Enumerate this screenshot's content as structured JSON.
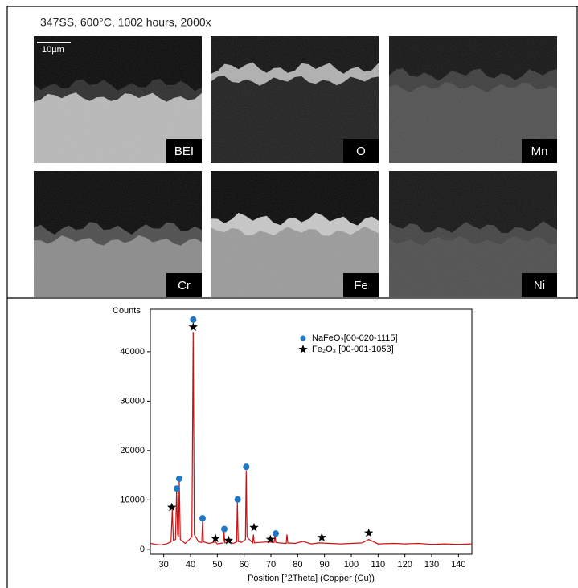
{
  "caption": "347SS, 600°C, 1002 hours, 2000x",
  "scale_bar": "10µm",
  "panels": [
    "BEI",
    "O",
    "Mn",
    "Cr",
    "Fe",
    "Ni"
  ],
  "chart_data": {
    "type": "line",
    "y_label": "Counts",
    "x_label": "Position [°2Theta] (Copper (Cu))",
    "xlim": [
      25,
      145
    ],
    "ylim": [
      -1000,
      48600
    ],
    "xticks": [
      30,
      40,
      50,
      60,
      70,
      80,
      90,
      100,
      110,
      120,
      130,
      140
    ],
    "yticks": [
      0,
      10000,
      20000,
      30000,
      40000
    ],
    "series": [
      {
        "color": "#d01010",
        "x": [
          25,
          27,
          29,
          31,
          32.7,
          33.2,
          33.6,
          34.4,
          34.8,
          35.2,
          35.5,
          35.8,
          36.2,
          38,
          40.5,
          41,
          41.4,
          43,
          44.2,
          44.5,
          44.8,
          47,
          49.3,
          50,
          52.2,
          52.5,
          52.8,
          54.2,
          56,
          57.2,
          57.5,
          57.8,
          59,
          60.5,
          60.8,
          61.1,
          63.2,
          63.5,
          63.8,
          66,
          69,
          71.2,
          71.5,
          71.8,
          73,
          75.7,
          76,
          76.3,
          79,
          82,
          85,
          88,
          92,
          96,
          100,
          104,
          106.5,
          110,
          116,
          120,
          125,
          130,
          135,
          140,
          145
        ],
        "values": [
          1200,
          1000,
          900,
          1100,
          1500,
          8000,
          1800,
          2000,
          12000,
          3000,
          2500,
          14000,
          2000,
          1200,
          2500,
          44000,
          3000,
          1500,
          1400,
          6000,
          1500,
          1200,
          1500,
          1100,
          1300,
          3500,
          1300,
          1500,
          1200,
          1500,
          9500,
          1600,
          1400,
          2000,
          16000,
          2500,
          1300,
          3000,
          1300,
          1400,
          1500,
          1400,
          3000,
          1400,
          1300,
          1200,
          3000,
          1300,
          1200,
          1600,
          1100,
          1300,
          1200,
          1100,
          1200,
          1300,
          2000,
          1100,
          1200,
          1100,
          1200,
          1000,
          1100,
          1000,
          1100
        ]
      },
      {
        "name": "NaFeO₂[00-020-1115]",
        "color": "#1f77c8",
        "marker": "circle",
        "x": [
          34.9,
          35.8,
          41,
          44.5,
          52.6,
          57.6,
          60.8,
          71.8
        ],
        "values": [
          12300,
          14300,
          46500,
          6300,
          4100,
          10100,
          16700,
          3200
        ]
      },
      {
        "name": "Fe₂O₃ [00-001-1053]",
        "color": "#000000",
        "marker": "star",
        "x": [
          33,
          41,
          49.3,
          54.2,
          63.7,
          69.8,
          89,
          106.5
        ],
        "values": [
          8500,
          45000,
          2200,
          1800,
          4400,
          2000,
          2400,
          3300
        ]
      }
    ]
  }
}
